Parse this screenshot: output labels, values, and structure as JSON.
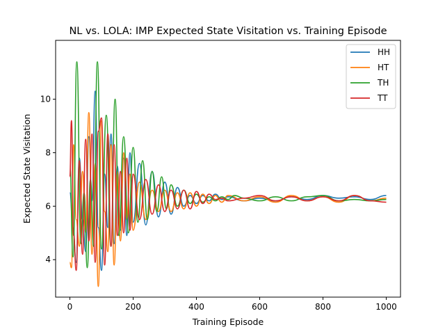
{
  "chart_data": {
    "type": "line",
    "title": "NL vs. LOLA: IMP Expected State Visitation vs. Training Episode",
    "xlabel": "Training Episode",
    "ylabel": "Expected State Visitation",
    "xlim": [
      -45,
      1045
    ],
    "ylim": [
      2.6,
      12.2
    ],
    "x_ticks": [
      0,
      200,
      400,
      600,
      800,
      1000
    ],
    "y_ticks": [
      4,
      6,
      8,
      10
    ],
    "x_tick_labels": [
      "0",
      "200",
      "400",
      "600",
      "800",
      "1000"
    ],
    "y_tick_labels": [
      "4",
      "6",
      "8",
      "10"
    ],
    "grid": false,
    "legend_position": "top-right",
    "series": [
      {
        "name": "HH",
        "color": "#1f77b4",
        "x": [
          0,
          10,
          20,
          30,
          40,
          50,
          60,
          70,
          80,
          90,
          100,
          110,
          120,
          130,
          140,
          150,
          160,
          170,
          180,
          190,
          200,
          220,
          240,
          260,
          280,
          300,
          320,
          340,
          360,
          380,
          400,
          420,
          440,
          460,
          480,
          500,
          550,
          600,
          650,
          700,
          750,
          800,
          850,
          900,
          950,
          1000
        ],
        "values": [
          6.5,
          5.2,
          3.9,
          7.8,
          5.5,
          4.3,
          8.6,
          6.2,
          10.3,
          5.2,
          3.6,
          7.2,
          5.2,
          8.7,
          4.6,
          7.5,
          5.1,
          7.8,
          4.9,
          8.0,
          5.4,
          7.6,
          5.3,
          7.3,
          5.6,
          6.9,
          5.7,
          6.7,
          6.0,
          6.4,
          6.1,
          6.4,
          6.2,
          6.45,
          6.25,
          6.35,
          6.2,
          6.3,
          6.2,
          6.35,
          6.25,
          6.4,
          6.3,
          6.35,
          6.25,
          6.4
        ]
      },
      {
        "name": "HT",
        "color": "#ff7f0e",
        "x": [
          0,
          5,
          12,
          20,
          30,
          40,
          50,
          60,
          70,
          80,
          90,
          100,
          110,
          120,
          130,
          140,
          150,
          160,
          170,
          180,
          190,
          200,
          220,
          240,
          260,
          280,
          300,
          320,
          340,
          360,
          380,
          400,
          420,
          440,
          460,
          480,
          500,
          550,
          600,
          650,
          700,
          750,
          800,
          850,
          900,
          950,
          1000
        ],
        "values": [
          3.9,
          3.7,
          8.3,
          5.5,
          4.5,
          7.3,
          5.0,
          9.5,
          4.2,
          7.6,
          3.0,
          9.2,
          5.8,
          4.3,
          8.3,
          3.8,
          7.3,
          4.7,
          8.0,
          5.5,
          7.2,
          5.1,
          6.9,
          5.5,
          6.6,
          5.8,
          6.6,
          5.8,
          6.5,
          5.9,
          6.5,
          6.0,
          6.45,
          6.1,
          6.4,
          6.15,
          6.4,
          6.2,
          6.35,
          6.15,
          6.4,
          6.2,
          6.35,
          6.15,
          6.4,
          6.2,
          6.3
        ]
      },
      {
        "name": "TH",
        "color": "#2ca02c",
        "x": [
          0,
          10,
          22,
          35,
          45,
          55,
          65,
          75,
          87,
          100,
          115,
          130,
          143,
          155,
          170,
          185,
          200,
          215,
          230,
          245,
          260,
          275,
          290,
          305,
          320,
          340,
          360,
          380,
          400,
          420,
          440,
          460,
          480,
          500,
          520,
          550,
          600,
          650,
          700,
          750,
          800,
          850,
          900,
          950,
          1000
        ],
        "values": [
          7.5,
          4.1,
          11.4,
          4.6,
          6.5,
          3.7,
          7.0,
          4.5,
          11.4,
          4.4,
          9.4,
          4.5,
          10.0,
          4.9,
          8.6,
          5.0,
          8.2,
          5.4,
          7.7,
          5.5,
          7.3,
          5.8,
          7.1,
          5.9,
          6.8,
          6.0,
          6.6,
          6.1,
          6.45,
          6.15,
          6.35,
          6.2,
          6.35,
          6.25,
          6.4,
          6.3,
          6.2,
          6.35,
          6.2,
          6.35,
          6.4,
          6.2,
          6.25,
          6.2,
          6.25
        ]
      },
      {
        "name": "TT",
        "color": "#d62728",
        "x": [
          0,
          5,
          12,
          20,
          30,
          40,
          50,
          60,
          70,
          80,
          90,
          100,
          110,
          120,
          130,
          140,
          150,
          160,
          170,
          180,
          190,
          200,
          220,
          240,
          260,
          280,
          300,
          320,
          340,
          360,
          380,
          400,
          420,
          440,
          460,
          480,
          500,
          550,
          600,
          650,
          700,
          750,
          800,
          850,
          900,
          950,
          1000
        ],
        "values": [
          7.1,
          9.2,
          4.9,
          3.6,
          7.7,
          4.2,
          8.5,
          4.7,
          8.7,
          3.9,
          8.8,
          9.3,
          3.8,
          8.7,
          4.5,
          8.3,
          4.9,
          7.3,
          5.0,
          7.8,
          5.1,
          7.2,
          5.5,
          7.0,
          5.7,
          6.8,
          5.8,
          6.6,
          5.9,
          6.6,
          5.9,
          6.55,
          6.1,
          6.45,
          6.25,
          6.3,
          6.2,
          6.3,
          6.4,
          6.2,
          6.35,
          6.2,
          6.35,
          6.2,
          6.4,
          6.2,
          6.15
        ]
      }
    ]
  }
}
